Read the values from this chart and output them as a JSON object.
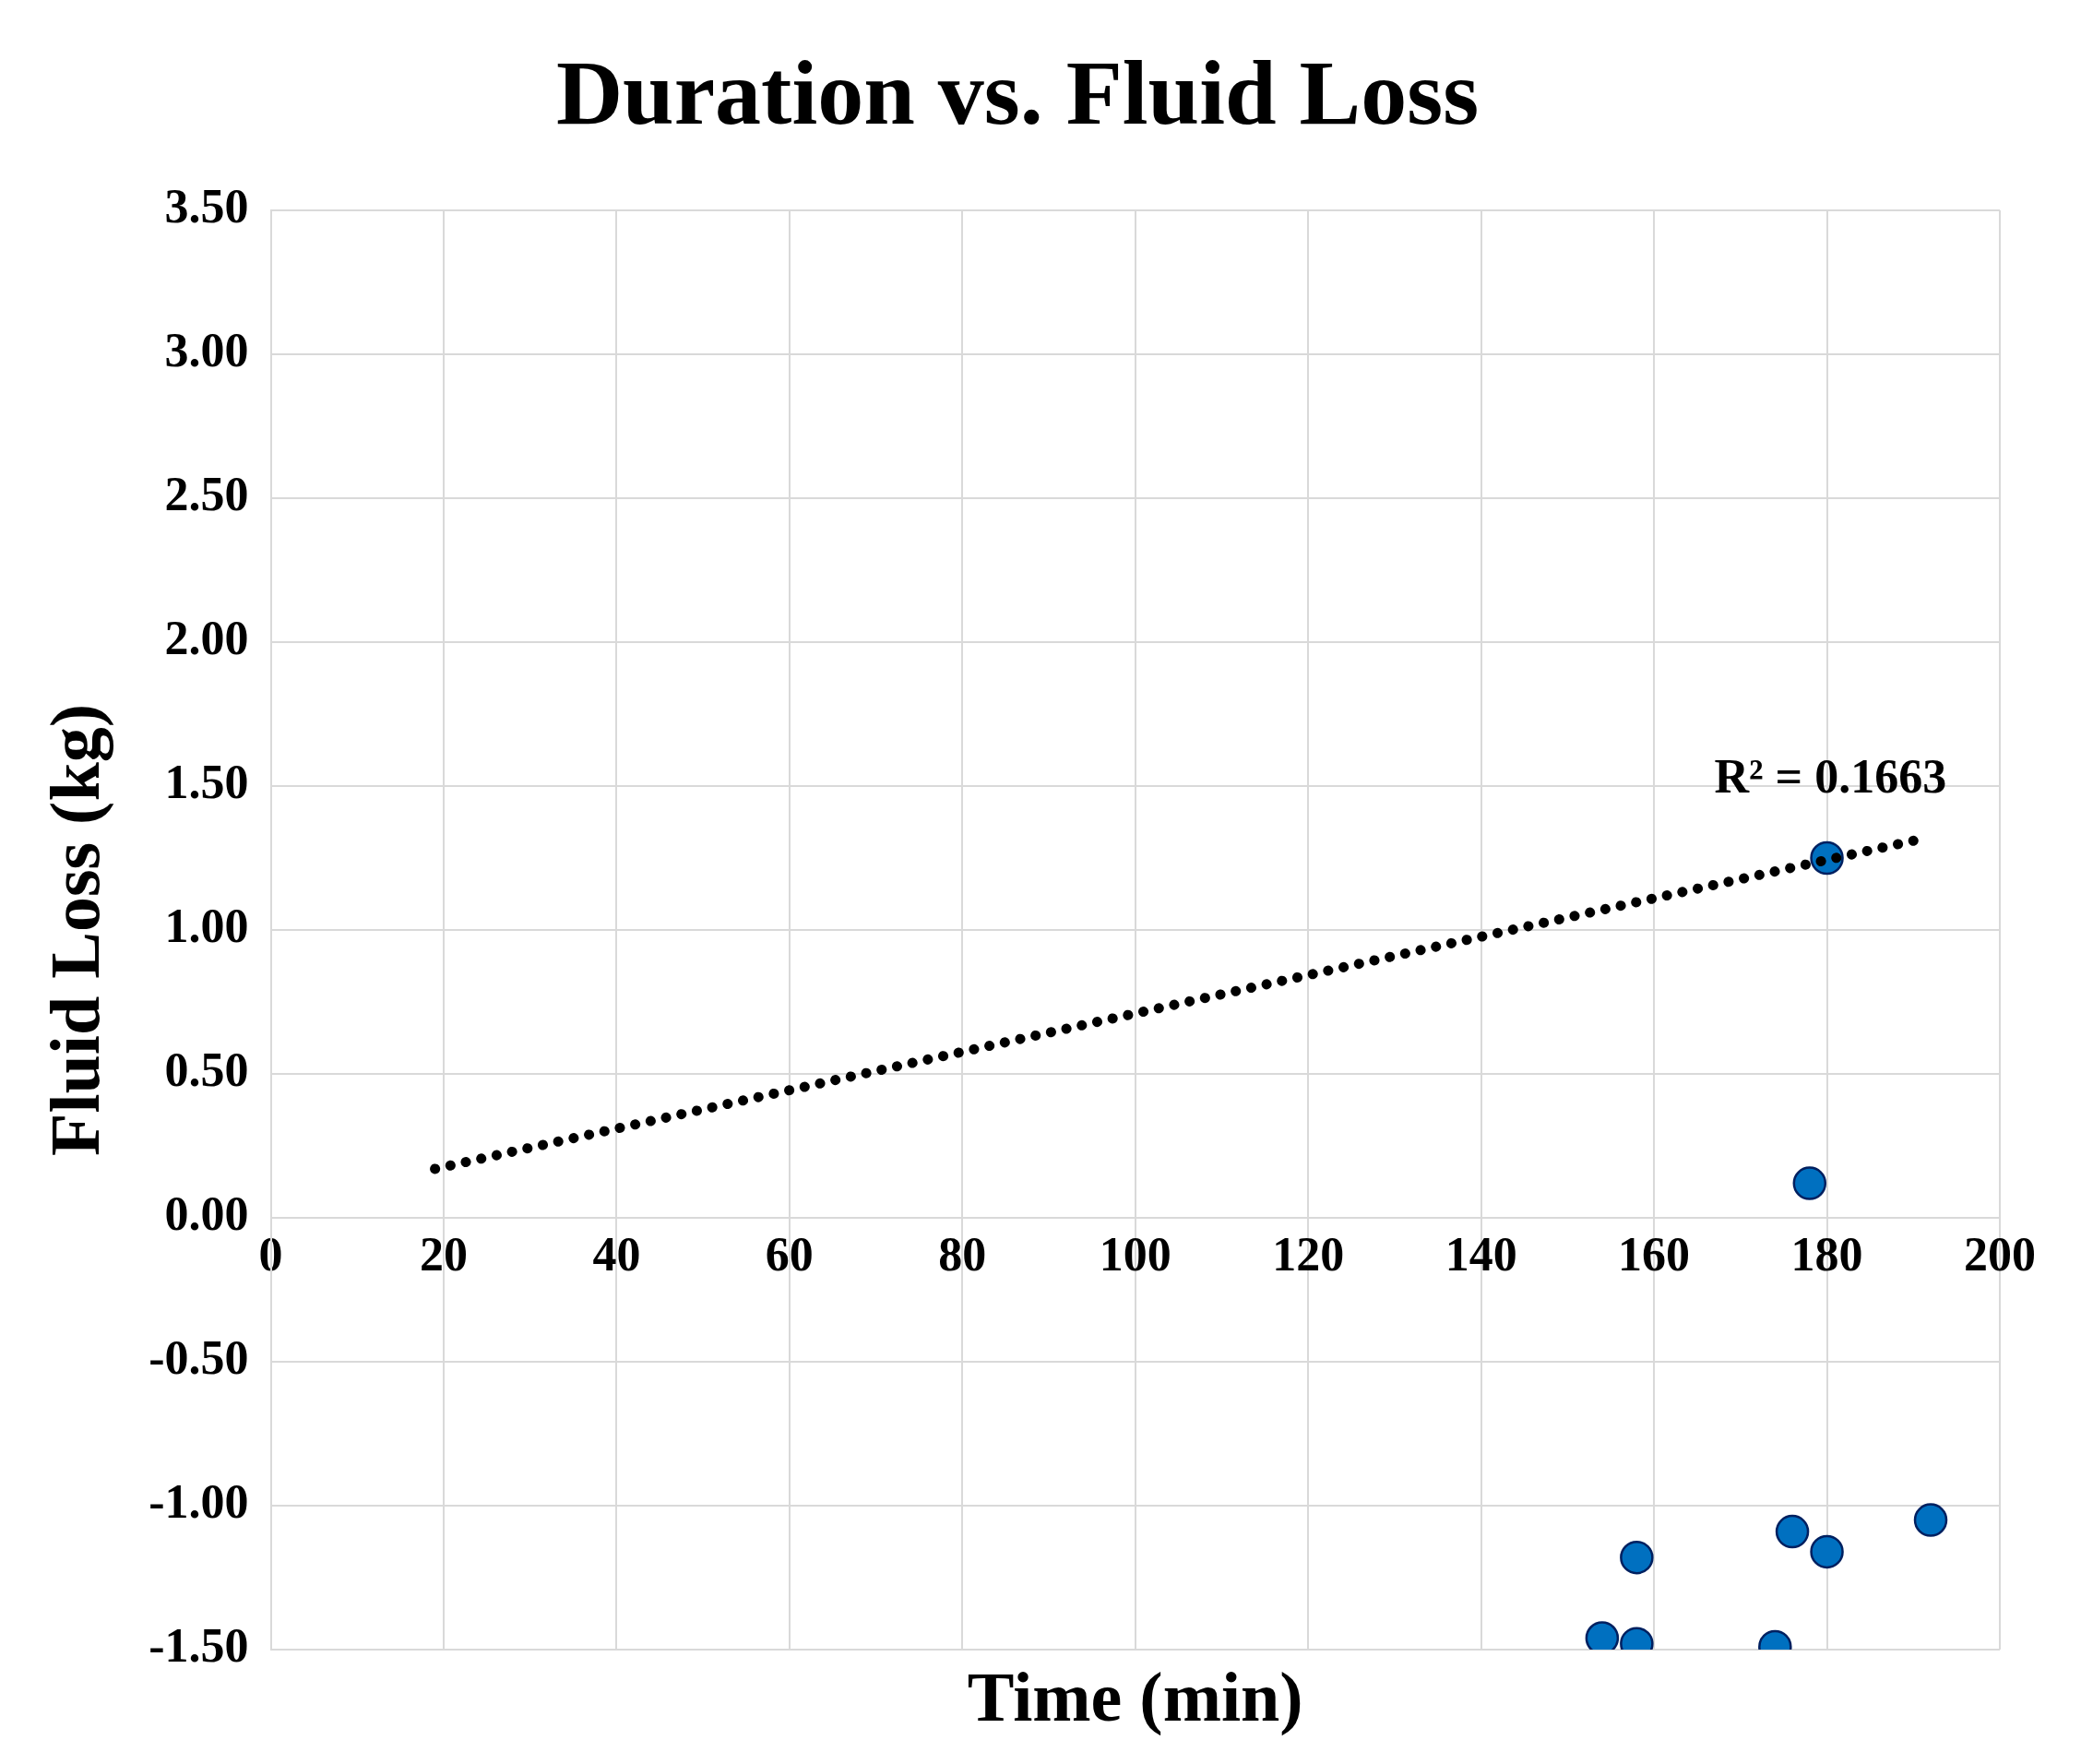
{
  "chart_data": {
    "type": "scatter",
    "title": "Duration vs. Fluid Loss",
    "xlabel": "Time (min)",
    "ylabel": "Fluid Loss (kg)",
    "series": [
      {
        "type": "scatter",
        "color": "#0070c0",
        "x": [
          180,
          178,
          158,
          154,
          158,
          174,
          176,
          180,
          192
        ],
        "values": [
          1.25,
          0.12,
          -1.18,
          -1.46,
          -1.48,
          -1.49,
          -1.09,
          -1.16,
          -1.05
        ],
        "marker": "circle"
      },
      {
        "type": "line",
        "color": "#000000",
        "x": [
          19,
          190
        ],
        "values": [
          0.17,
          1.31
        ],
        "line_style": "dotted",
        "marker": "none"
      }
    ],
    "annotations": [
      "R² = 0.1663"
    ],
    "xlim": [
      0,
      200
    ],
    "xticks": [
      0,
      20,
      40,
      60,
      80,
      100,
      120,
      140,
      160,
      180,
      200
    ],
    "ylim": [
      -1.5,
      3.5
    ],
    "yticks": [
      {
        "value": -1.5,
        "label": "-1.50"
      },
      {
        "value": -1,
        "label": "-1.00"
      },
      {
        "value": -0.5,
        "label": "-0.50"
      },
      {
        "value": 0,
        "label": "0.00"
      },
      {
        "value": 0.5,
        "label": "0.50"
      },
      {
        "value": 1,
        "label": "1.00"
      },
      {
        "value": 1.5,
        "label": "1.50"
      },
      {
        "value": 2,
        "label": "2.00"
      },
      {
        "value": 2.5,
        "label": "2.50"
      },
      {
        "value": 3,
        "label": "3.00"
      },
      {
        "value": 3.5,
        "label": "3.50"
      }
    ],
    "grid": true,
    "legend": false
  }
}
